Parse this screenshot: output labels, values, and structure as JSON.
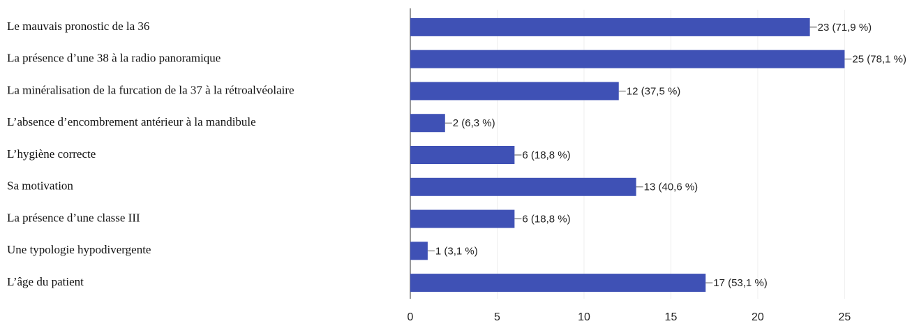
{
  "chart_data": {
    "type": "bar",
    "orientation": "horizontal",
    "categories": [
      "Le mauvais pronostic de la 36",
      "La présence d’une 38 à la radio panoramique",
      "La minéralisation de la furcation de la 37 à la rétroalvéolaire",
      "L’absence d’encombrement antérieur à la mandibule",
      "L’hygiène correcte",
      "Sa motivation",
      "La présence d’une classe III",
      "Une typologie hypodivergente",
      "L’âge du patient"
    ],
    "values": [
      23,
      25,
      12,
      2,
      6,
      13,
      6,
      1,
      17
    ],
    "value_labels": [
      "23 (71,9 %)",
      "25 (78,1 %)",
      "12 (37,5 %)",
      "2 (6,3 %)",
      "6 (18,8 %)",
      "13 (40,6 %)",
      "6 (18,8 %)",
      "1 (3,1 %)",
      "17 (53,1 %)"
    ],
    "color": "#3f51b5",
    "xlim": [
      0,
      29
    ],
    "xticks": [
      0,
      5,
      10,
      15,
      20,
      25
    ],
    "grid": true
  }
}
